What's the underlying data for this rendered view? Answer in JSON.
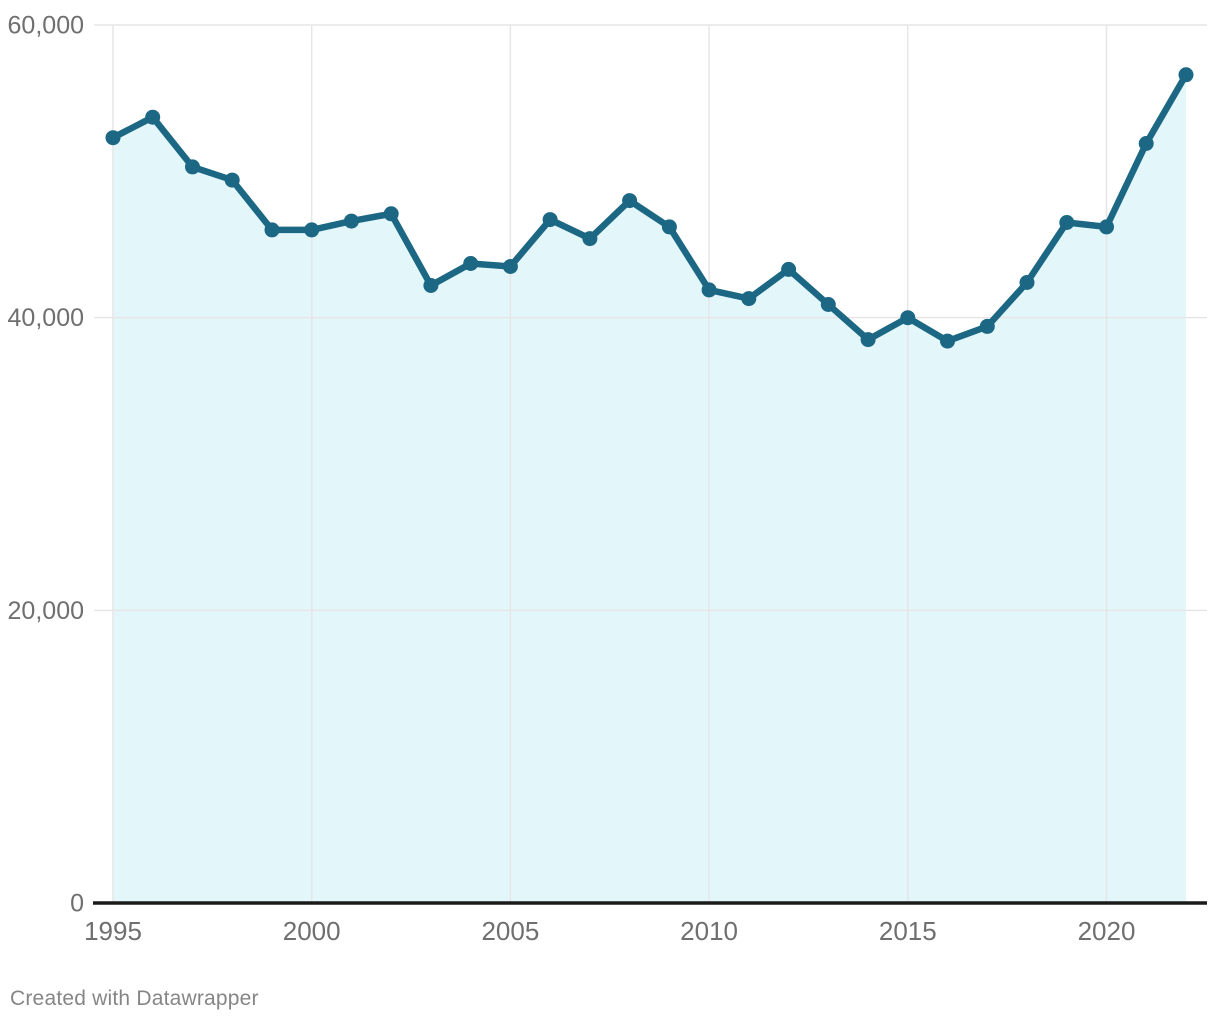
{
  "chart": {
    "footer_label": "Created with Datawrapper",
    "colors": {
      "line": "#1c6783",
      "marker": "#1c6783",
      "area_fill": "#e3f6fa",
      "grid": "#e6e6e6",
      "axis_baseline": "#1a1a1a",
      "tick_label": "#6f6f6f",
      "footer_text": "#868686",
      "background": "#ffffff"
    }
  },
  "chart_data": {
    "type": "area",
    "x": [
      1995,
      1996,
      1997,
      1998,
      1999,
      2000,
      2001,
      2002,
      2003,
      2004,
      2005,
      2006,
      2007,
      2008,
      2009,
      2010,
      2011,
      2012,
      2013,
      2014,
      2015,
      2016,
      2017,
      2018,
      2019,
      2020,
      2021,
      2022
    ],
    "values": [
      52300,
      53700,
      50300,
      49400,
      46000,
      46000,
      46600,
      47100,
      42200,
      43700,
      43500,
      46700,
      45400,
      48000,
      46200,
      41900,
      41300,
      43300,
      40900,
      38500,
      40000,
      38400,
      39400,
      42400,
      46500,
      46200,
      51900,
      56600
    ],
    "ylim": [
      0,
      60000
    ],
    "yticks": [
      0,
      20000,
      40000,
      60000
    ],
    "ytick_labels": [
      "0",
      "20,000",
      "40,000",
      "60,000"
    ],
    "xticks": [
      1995,
      2000,
      2005,
      2010,
      2015,
      2020
    ],
    "xtick_labels": [
      "1995",
      "2000",
      "2005",
      "2010",
      "2015",
      "2020"
    ],
    "grid": true,
    "legend": "none",
    "marker": "circle",
    "line_width": 6.5,
    "marker_radius": 7.5
  }
}
